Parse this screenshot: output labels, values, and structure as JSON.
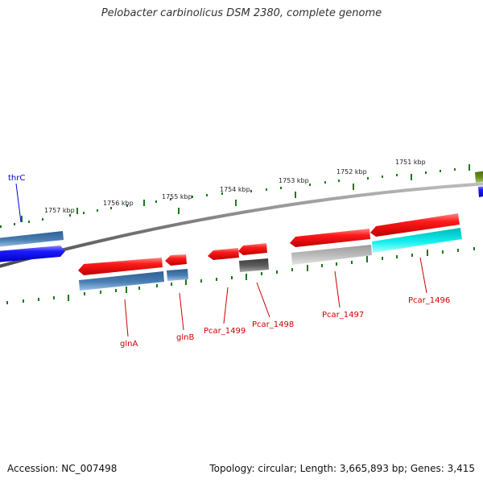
{
  "title": "Pelobacter carbinolicus DSM 2380, complete genome",
  "footer": {
    "accession": "Accession: NC_007498",
    "summary": "Topology: circular; Length: 3,665,893 bp; Genes: 3,415"
  },
  "scale_labels": [
    "1757 kbp",
    "1756 kbp",
    "1755 kbp",
    "1754 kbp",
    "1753 kbp",
    "1752 kbp",
    "1751 kbp"
  ],
  "gene_labels": [
    "thrC",
    "glnA",
    "glnB",
    "Pcar_1499",
    "Pcar_1498",
    "Pcar_1497",
    "Pcar_1496"
  ],
  "colors": {
    "forward_cds": "#ee1111",
    "reverse_cds": "#1111ee",
    "steel_blue": "#4a7fb4",
    "gray": "#b4b4b4",
    "dark_gray": "#5a5a5a",
    "cyan": "#11eeee",
    "olive": "#6b8e23",
    "tick_green": "#1a7a1a",
    "backbone": "#808080",
    "label_red": "#cc0000",
    "label_blue": "#0000cc"
  }
}
